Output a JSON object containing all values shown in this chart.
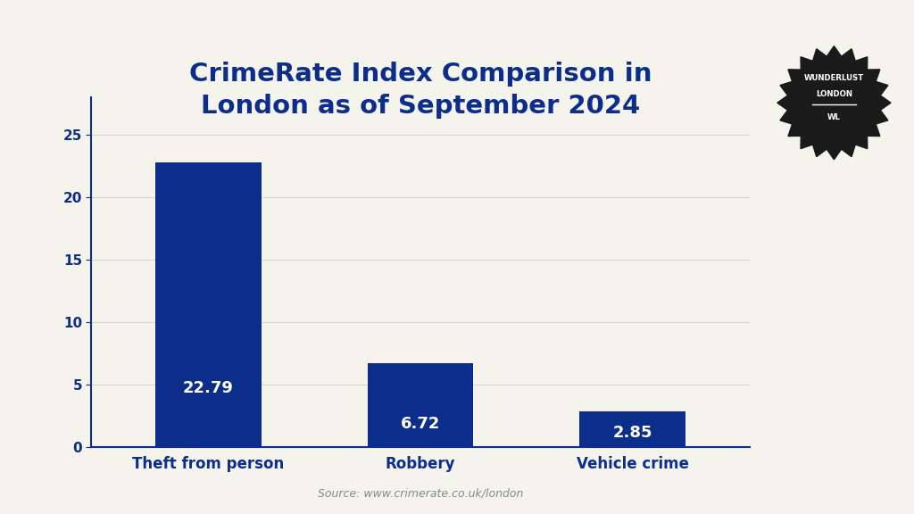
{
  "title": "CrimeRate Index Comparison in\nLondon as of September 2024",
  "categories": [
    "Theft from person",
    "Robbery",
    "Vehicle crime"
  ],
  "values": [
    22.79,
    6.72,
    2.85
  ],
  "bar_color": "#0D2D8A",
  "background_color": "#F5F4EC",
  "title_color": "#0D2D8A",
  "label_color": "#0D2D8A",
  "value_label_color": "#FFFFFF",
  "axis_color": "#0D2D8A",
  "tick_color": "#0D2D8A",
  "grid_color": "#D8D8C8",
  "ylim": [
    0,
    28
  ],
  "yticks": [
    0,
    5,
    10,
    15,
    20,
    25
  ],
  "source_text": "Source: www.crimerate.co.uk/london",
  "source_color": "#888888",
  "title_fontsize": 21,
  "xlabel_fontsize": 12,
  "value_fontsize": 13,
  "bar_width": 0.5,
  "badge_color": "#1A1A1A",
  "badge_text_color": "#FFFFFF",
  "badge_line1": "WUNDERLUST",
  "badge_line2": "LONDON",
  "badge_line3": "WL",
  "n_scallops": 20
}
